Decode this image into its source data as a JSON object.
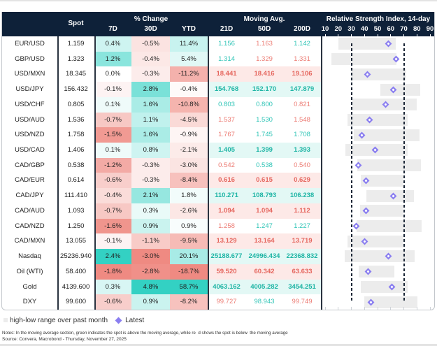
{
  "colors": {
    "header_bg": "#0e2139",
    "positive": "#33d1c3",
    "negative": "#ef8a82",
    "ma_positive_text": "#2ec4b6",
    "ma_negative_text": "#ec7b73",
    "ma_positive_text_bold": "#1fb5a5",
    "ma_negative_text_bold": "#e5665e",
    "ma_positive_bg": "#e3f8f5",
    "ma_negative_bg": "#fde9e7",
    "range_bar": "#ececec",
    "latest_marker": "#8a7ef0",
    "reference_line": "#1b2636"
  },
  "legend": {
    "range_label": "high-low range over past month",
    "latest_label": "Latest"
  },
  "footer": {
    "notes": "Notes: In the moving average section, green indicates the spot is above the moving average, while re  d shows the spot is below  the moving average",
    "source": "Source: Convera, Macrobond - Thursday, November 27, 2025"
  },
  "chart_data": {
    "type": "table",
    "header": {
      "spot": "Spot",
      "pct_change_group": "% Change",
      "pct_change_cols": [
        "7D",
        "30D",
        "YTD"
      ],
      "moving_avg_group": "Moving Avg.",
      "moving_avg_cols": [
        "21D",
        "50D",
        "200D"
      ]
    },
    "rsi": {
      "title": "Relative Strength Index, 14-day",
      "xlim": [
        10,
        90
      ],
      "ticks": [
        10,
        20,
        30,
        40,
        50,
        60,
        70,
        80,
        90
      ],
      "reference_lines": [
        30,
        70
      ],
      "legend": [
        "high-low range over past month",
        "Latest"
      ]
    },
    "rows": [
      {
        "name": "EUR/USD",
        "spot": "1.159",
        "pct_change": [
          "0.4%",
          "-0.5%",
          "11.4%"
        ],
        "moving_avg": [
          "1.156",
          "1.163",
          "1.142"
        ],
        "rsi": {
          "low": 20,
          "high": 64,
          "latest": 58
        }
      },
      {
        "name": "GBP/USD",
        "spot": "1.323",
        "pct_change": [
          "1.2%",
          "-0.4%",
          "5.4%"
        ],
        "moving_avg": [
          "1.314",
          "1.329",
          "1.331"
        ],
        "rsi": {
          "low": 15,
          "high": 64.5,
          "latest": 64
        }
      },
      {
        "name": "USD/MXN",
        "spot": "18.345",
        "pct_change": [
          "0.0%",
          "-0.3%",
          "-11.2%"
        ],
        "moving_avg": [
          "18.441",
          "18.416",
          "19.106"
        ],
        "rsi": {
          "low": 30,
          "high": 72,
          "latest": 42
        }
      },
      {
        "name": "USD/JPY",
        "spot": "156.432",
        "pct_change": [
          "-0.1%",
          "2.8%",
          "-0.4%"
        ],
        "moving_avg": [
          "154.768",
          "152.170",
          "147.879"
        ],
        "rsi": {
          "low": 52,
          "high": 82.5,
          "latest": 62
        }
      },
      {
        "name": "USD/CHF",
        "spot": "0.805",
        "pct_change": [
          "0.1%",
          "1.6%",
          "-10.8%"
        ],
        "moving_avg": [
          "0.803",
          "0.800",
          "0.821"
        ],
        "rsi": {
          "low": 31,
          "high": 80,
          "latest": 56
        }
      },
      {
        "name": "USD/AUD",
        "spot": "1.536",
        "pct_change": [
          "-0.7%",
          "1.1%",
          "-4.5%"
        ],
        "moving_avg": [
          "1.537",
          "1.530",
          "1.548"
        ],
        "rsi": {
          "low": 27,
          "high": 73,
          "latest": 44
        }
      },
      {
        "name": "USD/NZD",
        "spot": "1.758",
        "pct_change": [
          "-1.5%",
          "1.6%",
          "-0.9%"
        ],
        "moving_avg": [
          "1.767",
          "1.745",
          "1.708"
        ],
        "rsi": {
          "low": 32,
          "high": 82,
          "latest": 38
        }
      },
      {
        "name": "USD/CAD",
        "spot": "1.406",
        "pct_change": [
          "0.1%",
          "0.8%",
          "-2.1%"
        ],
        "moving_avg": [
          "1.405",
          "1.399",
          "1.393"
        ],
        "rsi": {
          "low": 25.5,
          "high": 73,
          "latest": 48
        }
      },
      {
        "name": "CAD/GBP",
        "spot": "0.538",
        "pct_change": [
          "-1.2%",
          "-0.3%",
          "-3.0%"
        ],
        "moving_avg": [
          "0.542",
          "0.538",
          "0.540"
        ],
        "rsi": {
          "low": 34.5,
          "high": 83,
          "latest": 35.5
        }
      },
      {
        "name": "CAD/EUR",
        "spot": "0.614",
        "pct_change": [
          "-0.6%",
          "-0.3%",
          "-8.4%"
        ],
        "moving_avg": [
          "0.616",
          "0.615",
          "0.629"
        ],
        "rsi": {
          "low": 37,
          "high": 69,
          "latest": 41
        }
      },
      {
        "name": "CAD/JPY",
        "spot": "111.410",
        "pct_change": [
          "-0.4%",
          "2.1%",
          "1.8%"
        ],
        "moving_avg": [
          "110.271",
          "108.793",
          "106.238"
        ],
        "rsi": {
          "low": 41.5,
          "high": 77.5,
          "latest": 62
        }
      },
      {
        "name": "CAD/AUD",
        "spot": "1.093",
        "pct_change": [
          "-0.7%",
          "0.3%",
          "-2.6%"
        ],
        "moving_avg": [
          "1.094",
          "1.094",
          "1.112"
        ],
        "rsi": {
          "low": 36.5,
          "high": 69,
          "latest": 41
        }
      },
      {
        "name": "CAD/NZD",
        "spot": "1.250",
        "pct_change": [
          "-1.6%",
          "0.9%",
          "0.9%"
        ],
        "moving_avg": [
          "1.258",
          "1.247",
          "1.227"
        ],
        "rsi": {
          "low": 34,
          "high": 83.5,
          "latest": 33.5
        }
      },
      {
        "name": "CAD/MXN",
        "spot": "13.055",
        "pct_change": [
          "-0.1%",
          "-1.1%",
          "-9.5%"
        ],
        "moving_avg": [
          "13.129",
          "13.164",
          "13.719"
        ],
        "rsi": {
          "low": 27,
          "high": 69,
          "latest": 40
        }
      },
      {
        "name": "Nasdaq",
        "spot": "25236.940",
        "pct_change": [
          "2.4%",
          "-3.0%",
          "20.1%"
        ],
        "moving_avg": [
          "25188.677",
          "24996.434",
          "22368.832"
        ],
        "rsi": {
          "low": 25,
          "high": 78,
          "latest": 58.5
        }
      },
      {
        "name": "Oil (WTI)",
        "spot": "58.400",
        "pct_change": [
          "-1.8%",
          "-2.8%",
          "-18.7%"
        ],
        "moving_avg": [
          "59.520",
          "60.342",
          "63.633"
        ],
        "rsi": {
          "low": 35.5,
          "high": 63,
          "latest": 43
        }
      },
      {
        "name": "Gold",
        "spot": "4139.600",
        "pct_change": [
          "0.3%",
          "4.8%",
          "58.7%"
        ],
        "moving_avg": [
          "4063.162",
          "4005.282",
          "3454.251"
        ],
        "rsi": {
          "low": 37,
          "high": 73,
          "latest": 61
        }
      },
      {
        "name": "DXY",
        "spot": "99.600",
        "pct_change": [
          "-0.6%",
          "0.9%",
          "-8.2%"
        ],
        "moving_avg": [
          "99.727",
          "98.943",
          "99.749"
        ],
        "rsi": {
          "low": 40,
          "high": 80.5,
          "latest": 45
        }
      }
    ]
  }
}
